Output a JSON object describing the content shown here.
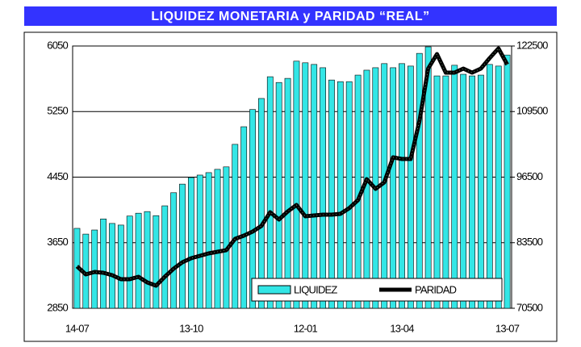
{
  "chart_data": {
    "type": "bar-line",
    "title": "LIQUIDEZ MONETARIA y PARIDAD “REAL”",
    "categories": [
      "14-07",
      null,
      null,
      null,
      null,
      null,
      null,
      null,
      null,
      null,
      null,
      null,
      null,
      "13-10",
      null,
      null,
      null,
      null,
      null,
      null,
      null,
      null,
      null,
      null,
      null,
      null,
      "12-01",
      null,
      null,
      null,
      null,
      null,
      null,
      null,
      null,
      null,
      null,
      "13-04",
      null,
      null,
      null,
      null,
      null,
      null,
      null,
      null,
      null,
      null,
      null,
      "13-07"
    ],
    "series": [
      {
        "name": "LIQUIDEZ",
        "type": "bar",
        "color": "#33e6e6",
        "axis": "y",
        "values": [
          3825,
          3755,
          3805,
          3940,
          3885,
          3865,
          3975,
          4010,
          4030,
          3980,
          4100,
          4260,
          4365,
          4445,
          4475,
          4505,
          4545,
          4575,
          4850,
          5065,
          5275,
          5410,
          5675,
          5605,
          5655,
          5865,
          5845,
          5825,
          5785,
          5635,
          5615,
          5615,
          5695,
          5755,
          5785,
          5835,
          5785,
          5835,
          5805,
          5960,
          6040,
          5685,
          5685,
          5815,
          5705,
          5685,
          5695,
          5825,
          5805,
          5940
        ]
      },
      {
        "name": "PARIDAD",
        "type": "line",
        "color": "#000000",
        "axis": "y2",
        "values": [
          78820,
          77220,
          77700,
          77540,
          77060,
          76260,
          76260,
          76740,
          75620,
          74980,
          76740,
          78340,
          79620,
          80420,
          80900,
          81380,
          81700,
          82020,
          84260,
          84900,
          85700,
          86820,
          89540,
          88100,
          89700,
          90980,
          88740,
          88900,
          89060,
          89060,
          89220,
          90340,
          91940,
          96100,
          94180,
          95460,
          100420,
          100100,
          100100,
          107620,
          118020,
          120900,
          117220,
          117220,
          118020,
          117220,
          118020,
          120100,
          122020,
          118820
        ]
      }
    ],
    "ylim": [
      2850,
      6050
    ],
    "yticks": [
      2850,
      3650,
      4450,
      5250,
      6050
    ],
    "y2lim": [
      70500,
      122500
    ],
    "y2ticks": [
      70500,
      83500,
      96500,
      109500,
      122500
    ],
    "grid": true,
    "legend": "bottom-right"
  }
}
